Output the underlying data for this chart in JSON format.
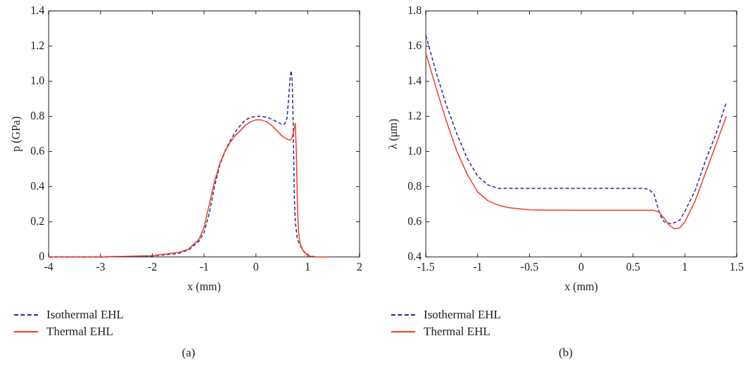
{
  "chart_data": [
    {
      "type": "line",
      "xlabel": "x (mm)",
      "ylabel": "p (GPa)",
      "xlim": [
        -4,
        2
      ],
      "xticks": [
        -4,
        -3,
        -2,
        -1,
        0,
        1,
        2
      ],
      "ylim": [
        0,
        1.4
      ],
      "yticks": [
        0,
        0.2,
        0.4,
        0.6,
        0.8,
        {
          "value": 1,
          "label": "1.0"
        },
        1.2,
        1.4
      ],
      "legend": "bottom left",
      "annotations": [
        "(a)"
      ],
      "series": [
        {
          "name": "Isothermal EHL",
          "color": "#2b2b8c",
          "line_style": "dashed",
          "x": [
            -4,
            -3,
            -2,
            -1.5,
            -1.3,
            -1.1,
            -1,
            -0.9,
            -0.8,
            -0.7,
            -0.6,
            -0.5,
            -0.4,
            -0.3,
            -0.2,
            -0.1,
            0,
            0.1,
            0.2,
            0.3,
            0.4,
            0.5,
            0.55,
            0.6,
            0.63,
            0.66,
            0.68,
            0.7,
            0.72,
            0.74,
            0.76,
            0.8,
            0.9,
            1,
            1.15
          ],
          "values": [
            0,
            0,
            0.005,
            0.02,
            0.04,
            0.09,
            0.14,
            0.25,
            0.4,
            0.52,
            0.6,
            0.66,
            0.71,
            0.75,
            0.78,
            0.795,
            0.8,
            0.8,
            0.795,
            0.785,
            0.77,
            0.755,
            0.755,
            0.79,
            0.9,
            1.02,
            1.06,
            1,
            0.75,
            0.35,
            0.2,
            0.1,
            0.04,
            0.01,
            0
          ]
        },
        {
          "name": "Thermal EHL",
          "color": "#f03c28",
          "line_style": "solid",
          "x": [
            -4,
            -3,
            -2,
            -1.5,
            -1.3,
            -1.1,
            -1,
            -0.9,
            -0.8,
            -0.7,
            -0.6,
            -0.5,
            -0.4,
            -0.3,
            -0.2,
            -0.1,
            0,
            0.1,
            0.2,
            0.3,
            0.4,
            0.5,
            0.6,
            0.66,
            0.7,
            0.73,
            0.76,
            0.78,
            0.8,
            0.82,
            0.85,
            0.9,
            1,
            1.1,
            1.4
          ],
          "values": [
            0,
            0,
            0.007,
            0.025,
            0.045,
            0.1,
            0.17,
            0.3,
            0.43,
            0.53,
            0.6,
            0.65,
            0.69,
            0.72,
            0.75,
            0.77,
            0.78,
            0.78,
            0.77,
            0.75,
            0.72,
            0.69,
            0.67,
            0.665,
            0.68,
            0.72,
            0.76,
            0.6,
            0.3,
            0.15,
            0.08,
            0.04,
            0.01,
            0,
            0
          ]
        }
      ]
    },
    {
      "type": "line",
      "xlabel": "x (mm)",
      "ylabel": "λ (μm)",
      "xlim": [
        -1.5,
        1.5
      ],
      "xticks": [
        -1.5,
        -1,
        -0.5,
        0,
        0.5,
        1,
        1.5
      ],
      "ylim": [
        0.4,
        1.8
      ],
      "yticks": [
        0.4,
        0.6,
        0.8,
        {
          "value": 1,
          "label": "1.0"
        },
        1.2,
        1.4,
        1.6,
        1.8
      ],
      "legend": "bottom left",
      "annotations": [
        "(b)"
      ],
      "series": [
        {
          "name": "Isothermal EHL",
          "color": "#2b2b8c",
          "line_style": "dashed",
          "x": [
            -1.5,
            -1.4,
            -1.3,
            -1.2,
            -1.1,
            -1,
            -0.9,
            -0.8,
            -0.5,
            0,
            0.5,
            0.6,
            0.65,
            0.7,
            0.73,
            0.76,
            0.8,
            0.85,
            0.9,
            0.95,
            1,
            1.1,
            1.2,
            1.3,
            1.4
          ],
          "values": [
            1.66,
            1.45,
            1.26,
            1.1,
            0.96,
            0.86,
            0.81,
            0.79,
            0.79,
            0.79,
            0.79,
            0.79,
            0.785,
            0.76,
            0.7,
            0.64,
            0.6,
            0.59,
            0.595,
            0.61,
            0.66,
            0.78,
            0.95,
            1.1,
            1.28
          ]
        },
        {
          "name": "Thermal EHL",
          "color": "#f03c28",
          "line_style": "solid",
          "x": [
            -1.5,
            -1.4,
            -1.3,
            -1.2,
            -1.1,
            -1,
            -0.9,
            -0.8,
            -0.7,
            -0.5,
            0,
            0.5,
            0.7,
            0.75,
            0.8,
            0.85,
            0.9,
            0.95,
            1,
            1.1,
            1.2,
            1.3,
            1.4
          ],
          "values": [
            1.56,
            1.36,
            1.17,
            1,
            0.87,
            0.77,
            0.72,
            0.695,
            0.68,
            0.668,
            0.665,
            0.665,
            0.665,
            0.655,
            0.62,
            0.58,
            0.56,
            0.565,
            0.6,
            0.72,
            0.88,
            1.04,
            1.2
          ]
        }
      ]
    }
  ]
}
